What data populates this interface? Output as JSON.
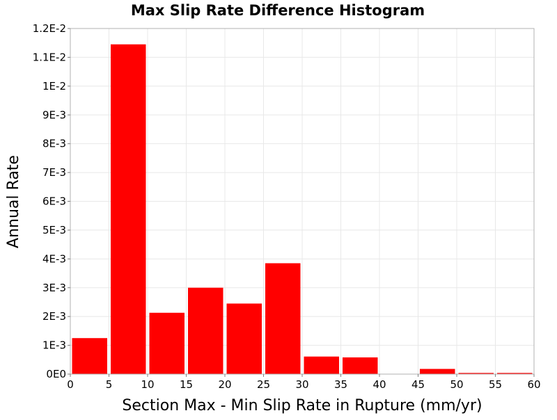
{
  "chart_data": {
    "type": "bar",
    "title": "Max Slip Rate Difference Histogram",
    "xlabel": "Section Max - Min Slip Rate in Rupture (mm/yr)",
    "ylabel": "Annual Rate",
    "xlim": [
      0,
      60
    ],
    "ylim": [
      0,
      0.012
    ],
    "x_ticks": [
      "0",
      "5",
      "10",
      "15",
      "20",
      "25",
      "30",
      "35",
      "40",
      "45",
      "50",
      "55",
      "60"
    ],
    "y_ticks": [
      "0E0",
      "1E-3",
      "2E-3",
      "3E-3",
      "4E-3",
      "5E-3",
      "6E-3",
      "7E-3",
      "8E-3",
      "9E-3",
      "1E-2",
      "1.1E-2",
      "1.2E-2"
    ],
    "bin_width": 5,
    "bins": [
      {
        "x_start": 0,
        "value": 0.00125
      },
      {
        "x_start": 5,
        "value": 0.01145
      },
      {
        "x_start": 10,
        "value": 0.00213
      },
      {
        "x_start": 15,
        "value": 0.003
      },
      {
        "x_start": 20,
        "value": 0.00245
      },
      {
        "x_start": 25,
        "value": 0.00385
      },
      {
        "x_start": 30,
        "value": 0.00061
      },
      {
        "x_start": 35,
        "value": 0.00058
      },
      {
        "x_start": 40,
        "value": 0.0
      },
      {
        "x_start": 45,
        "value": 0.00018
      },
      {
        "x_start": 50,
        "value": 4e-05
      },
      {
        "x_start": 55,
        "value": 4e-05
      }
    ],
    "bar_color": "#ff0000",
    "grid": true
  }
}
